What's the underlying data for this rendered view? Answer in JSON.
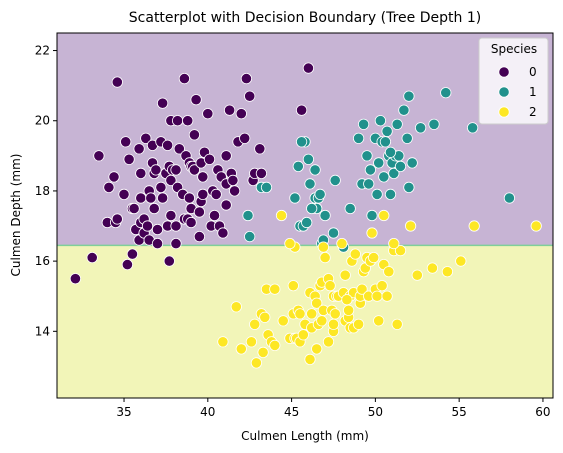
{
  "chart_data": {
    "type": "scatter",
    "title": "Scatterplot with Decision Boundary (Tree Depth 1)",
    "xlabel": "Culmen Length (mm)",
    "ylabel": "Culmen Depth (mm)",
    "xlim": [
      31,
      60.6
    ],
    "ylim": [
      12.1,
      22.5
    ],
    "xticks": [
      35,
      40,
      45,
      50,
      55,
      60
    ],
    "yticks": [
      14,
      16,
      18,
      20,
      22
    ],
    "grid": false,
    "boundary": {
      "split_y": 16.45,
      "regions": [
        {
          "class": "0",
          "color": "#c7b4d4"
        },
        {
          "class": "2",
          "color": "#f2f5b8"
        }
      ]
    },
    "legend": {
      "title": "Species",
      "position": "top-right"
    },
    "series": [
      {
        "name": "0",
        "color": "#440154",
        "points": [
          [
            32.1,
            15.5
          ],
          [
            33.1,
            16.1
          ],
          [
            33.5,
            19.0
          ],
          [
            34.0,
            17.1
          ],
          [
            34.1,
            18.1
          ],
          [
            34.4,
            18.4
          ],
          [
            34.5,
            17.1
          ],
          [
            34.6,
            21.1
          ],
          [
            34.6,
            17.2
          ],
          [
            35.0,
            17.9
          ],
          [
            35.1,
            19.4
          ],
          [
            35.2,
            15.9
          ],
          [
            35.3,
            18.9
          ],
          [
            35.5,
            17.5
          ],
          [
            35.5,
            16.2
          ],
          [
            35.6,
            17.5
          ],
          [
            35.7,
            16.9
          ],
          [
            35.9,
            19.2
          ],
          [
            35.9,
            16.6
          ],
          [
            36.0,
            17.1
          ],
          [
            36.0,
            17.8
          ],
          [
            36.0,
            18.5
          ],
          [
            36.2,
            17.2
          ],
          [
            36.2,
            16.8
          ],
          [
            36.3,
            19.5
          ],
          [
            36.4,
            17.0
          ],
          [
            36.5,
            18.0
          ],
          [
            36.5,
            16.6
          ],
          [
            36.6,
            17.8
          ],
          [
            36.7,
            19.3
          ],
          [
            36.7,
            18.8
          ],
          [
            36.8,
            18.5
          ],
          [
            36.9,
            18.6
          ],
          [
            37.0,
            16.9
          ],
          [
            37.0,
            16.5
          ],
          [
            37.2,
            18.1
          ],
          [
            37.2,
            19.4
          ],
          [
            37.3,
            17.8
          ],
          [
            37.3,
            20.5
          ],
          [
            37.5,
            18.5
          ],
          [
            37.6,
            19.3
          ],
          [
            37.6,
            17.0
          ],
          [
            37.7,
            18.7
          ],
          [
            37.7,
            16.0
          ],
          [
            37.8,
            18.3
          ],
          [
            37.8,
            17.3
          ],
          [
            37.8,
            20.0
          ],
          [
            37.9,
            18.6
          ],
          [
            38.1,
            18.6
          ],
          [
            38.1,
            17.0
          ],
          [
            38.1,
            16.5
          ],
          [
            38.2,
            18.1
          ],
          [
            38.2,
            20.0
          ],
          [
            38.3,
            19.2
          ],
          [
            38.5,
            17.9
          ],
          [
            38.6,
            21.2
          ],
          [
            38.6,
            17.2
          ],
          [
            38.7,
            19.0
          ],
          [
            38.8,
            17.2
          ],
          [
            38.8,
            20.0
          ],
          [
            38.9,
            18.8
          ],
          [
            38.9,
            17.8
          ],
          [
            39.0,
            17.5
          ],
          [
            39.0,
            18.7
          ],
          [
            39.1,
            18.7
          ],
          [
            39.2,
            19.6
          ],
          [
            39.2,
            18.6
          ],
          [
            39.3,
            20.6
          ],
          [
            39.5,
            17.4
          ],
          [
            39.5,
            16.7
          ],
          [
            39.6,
            17.7
          ],
          [
            39.6,
            18.8
          ],
          [
            39.7,
            18.4
          ],
          [
            39.7,
            17.9
          ],
          [
            39.8,
            19.1
          ],
          [
            40.0,
            20.2
          ],
          [
            40.1,
            18.9
          ],
          [
            40.2,
            17.0
          ],
          [
            40.3,
            18.0
          ],
          [
            40.5,
            17.9
          ],
          [
            40.6,
            18.6
          ],
          [
            40.7,
            17.0
          ],
          [
            40.8,
            18.4
          ],
          [
            40.9,
            16.8
          ],
          [
            41.1,
            17.6
          ],
          [
            41.1,
            18.2
          ],
          [
            41.1,
            19.0
          ],
          [
            41.3,
            20.3
          ],
          [
            41.4,
            18.5
          ],
          [
            41.5,
            18.3
          ],
          [
            41.6,
            18.0
          ],
          [
            41.8,
            19.4
          ],
          [
            42.0,
            20.2
          ],
          [
            42.2,
            19.5
          ],
          [
            42.3,
            21.2
          ],
          [
            42.5,
            20.7
          ],
          [
            42.7,
            18.3
          ],
          [
            42.8,
            18.5
          ],
          [
            43.1,
            19.2
          ],
          [
            43.2,
            18.5
          ],
          [
            45.6,
            20.3
          ],
          [
            46.0,
            21.5
          ],
          [
            36.8,
            17.5
          ],
          [
            40.4,
            17.3
          ],
          [
            39.0,
            17.1
          ]
        ]
      },
      {
        "name": "1",
        "color": "#21918c",
        "points": [
          [
            42.4,
            17.3
          ],
          [
            43.2,
            18.1
          ],
          [
            45.2,
            17.8
          ],
          [
            45.4,
            18.7
          ],
          [
            45.5,
            17.0
          ],
          [
            45.7,
            17.0
          ],
          [
            45.8,
            19.4
          ],
          [
            46.0,
            18.9
          ],
          [
            46.1,
            18.2
          ],
          [
            46.4,
            17.8
          ],
          [
            46.4,
            18.6
          ],
          [
            46.5,
            17.5
          ],
          [
            46.6,
            17.8
          ],
          [
            46.7,
            17.9
          ],
          [
            46.8,
            16.5
          ],
          [
            46.9,
            16.6
          ],
          [
            47.0,
            17.3
          ],
          [
            47.5,
            16.8
          ],
          [
            47.6,
            18.3
          ],
          [
            48.1,
            16.4
          ],
          [
            48.5,
            17.5
          ],
          [
            49.0,
            19.5
          ],
          [
            49.2,
            18.2
          ],
          [
            49.3,
            19.9
          ],
          [
            49.5,
            19.0
          ],
          [
            49.6,
            18.2
          ],
          [
            49.7,
            18.6
          ],
          [
            49.8,
            17.3
          ],
          [
            50.0,
            19.5
          ],
          [
            50.1,
            17.9
          ],
          [
            50.2,
            18.8
          ],
          [
            50.3,
            20.0
          ],
          [
            50.4,
            19.4
          ],
          [
            50.5,
            18.4
          ],
          [
            50.6,
            19.4
          ],
          [
            50.7,
            19.7
          ],
          [
            50.8,
            19.0
          ],
          [
            50.9,
            17.9
          ],
          [
            51.0,
            18.8
          ],
          [
            51.1,
            18.5
          ],
          [
            51.2,
            19.0
          ],
          [
            51.3,
            19.9
          ],
          [
            51.4,
            19.0
          ],
          [
            51.5,
            18.7
          ],
          [
            51.7,
            20.3
          ],
          [
            51.9,
            19.5
          ],
          [
            52.0,
            18.1
          ],
          [
            52.0,
            20.7
          ],
          [
            52.2,
            18.8
          ],
          [
            52.7,
            19.8
          ],
          [
            53.5,
            19.9
          ],
          [
            54.2,
            20.8
          ],
          [
            55.8,
            19.8
          ],
          [
            58.0,
            17.8
          ],
          [
            50.9,
            19.1
          ],
          [
            45.9,
            17.1
          ],
          [
            42.5,
            16.7
          ],
          [
            43.5,
            18.1
          ],
          [
            46.2,
            17.5
          ],
          [
            45.6,
            19.4
          ]
        ]
      },
      {
        "name": "2",
        "color": "#fde725",
        "points": [
          [
            40.9,
            13.7
          ],
          [
            41.7,
            14.7
          ],
          [
            42.0,
            13.5
          ],
          [
            42.6,
            13.7
          ],
          [
            42.9,
            13.1
          ],
          [
            43.2,
            14.5
          ],
          [
            43.3,
            13.4
          ],
          [
            43.4,
            14.4
          ],
          [
            43.5,
            15.2
          ],
          [
            43.6,
            13.9
          ],
          [
            43.8,
            13.7
          ],
          [
            44.0,
            13.6
          ],
          [
            44.4,
            17.3
          ],
          [
            44.5,
            14.3
          ],
          [
            44.9,
            13.8
          ],
          [
            45.1,
            14.5
          ],
          [
            45.2,
            13.8
          ],
          [
            45.2,
            16.4
          ],
          [
            45.3,
            13.8
          ],
          [
            45.4,
            14.6
          ],
          [
            45.5,
            13.7
          ],
          [
            45.5,
            14.5
          ],
          [
            45.7,
            13.9
          ],
          [
            45.8,
            14.2
          ],
          [
            46.1,
            13.2
          ],
          [
            46.1,
            15.1
          ],
          [
            46.2,
            14.5
          ],
          [
            46.2,
            14.1
          ],
          [
            46.4,
            15.0
          ],
          [
            46.5,
            13.5
          ],
          [
            46.5,
            14.8
          ],
          [
            46.6,
            14.2
          ],
          [
            46.7,
            15.3
          ],
          [
            46.8,
            14.3
          ],
          [
            46.8,
            15.4
          ],
          [
            46.9,
            14.6
          ],
          [
            47.0,
            16.1
          ],
          [
            47.2,
            13.7
          ],
          [
            47.2,
            15.5
          ],
          [
            47.3,
            15.3
          ],
          [
            47.4,
            14.6
          ],
          [
            47.5,
            14.0
          ],
          [
            47.5,
            15.0
          ],
          [
            47.6,
            14.5
          ],
          [
            47.7,
            15.0
          ],
          [
            47.8,
            15.0
          ],
          [
            48.1,
            15.1
          ],
          [
            48.2,
            14.3
          ],
          [
            48.2,
            15.6
          ],
          [
            48.4,
            14.4
          ],
          [
            48.4,
            14.6
          ],
          [
            48.5,
            14.1
          ],
          [
            48.5,
            15.0
          ],
          [
            48.6,
            16.0
          ],
          [
            48.7,
            14.1
          ],
          [
            48.7,
            15.1
          ],
          [
            48.8,
            16.2
          ],
          [
            49.0,
            14.2
          ],
          [
            49.1,
            14.8
          ],
          [
            49.1,
            15.0
          ],
          [
            49.2,
            15.2
          ],
          [
            49.3,
            15.7
          ],
          [
            49.4,
            15.8
          ],
          [
            49.5,
            16.1
          ],
          [
            49.6,
            15.0
          ],
          [
            49.7,
            16.0
          ],
          [
            49.8,
            16.8
          ],
          [
            49.9,
            16.1
          ],
          [
            50.0,
            15.2
          ],
          [
            50.1,
            15.0
          ],
          [
            50.2,
            14.3
          ],
          [
            50.4,
            15.3
          ],
          [
            50.5,
            15.9
          ],
          [
            50.7,
            15.0
          ],
          [
            50.8,
            15.7
          ],
          [
            51.1,
            16.3
          ],
          [
            51.3,
            14.2
          ],
          [
            51.5,
            16.3
          ],
          [
            52.1,
            17.0
          ],
          [
            52.5,
            15.6
          ],
          [
            53.4,
            15.8
          ],
          [
            54.3,
            15.7
          ],
          [
            55.1,
            16.0
          ],
          [
            55.9,
            17.0
          ],
          [
            59.6,
            17.0
          ],
          [
            44.9,
            16.5
          ],
          [
            48.0,
            16.5
          ],
          [
            50.5,
            17.3
          ],
          [
            51.1,
            16.5
          ],
          [
            46.9,
            16.4
          ],
          [
            45.1,
            15.3
          ],
          [
            47.5,
            14.2
          ],
          [
            48.3,
            14.9
          ],
          [
            44.0,
            15.2
          ],
          [
            42.8,
            14.2
          ]
        ]
      }
    ]
  }
}
